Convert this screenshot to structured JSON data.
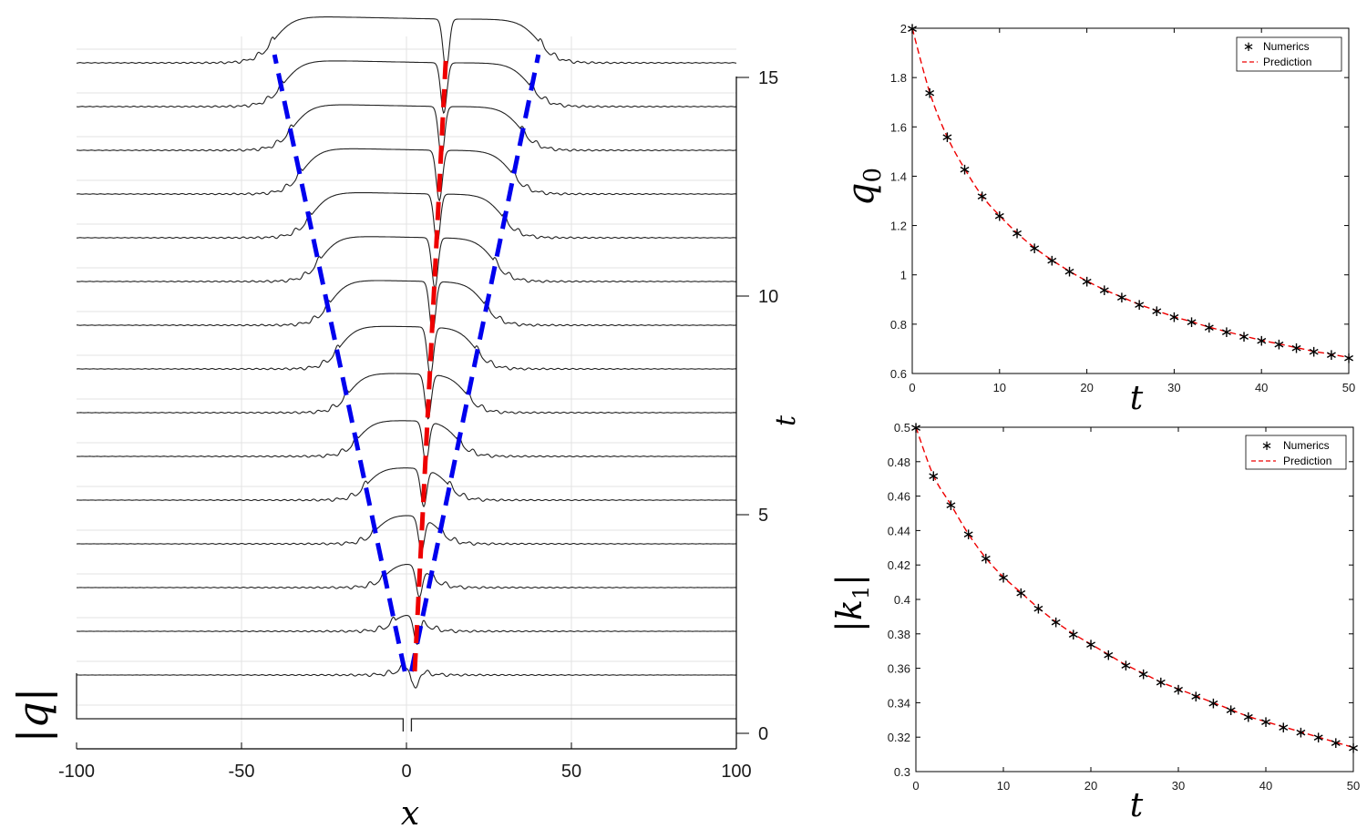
{
  "chart_data": [
    {
      "type": "line",
      "panel": "waterfall",
      "xlabel": "x",
      "ylabel": "|q|",
      "right_axis_label": "t",
      "xlim": [
        -100,
        100
      ],
      "tlim": [
        0,
        15
      ],
      "xticks": [
        "-100",
        "-50",
        "0",
        "50",
        "100"
      ],
      "tticks": [
        "0",
        "5",
        "10",
        "15"
      ],
      "grid": true,
      "series": [
        {
          "kind": "profiles",
          "t": [
            0,
            1,
            2,
            3,
            4,
            5,
            6,
            7,
            8,
            9,
            10,
            11,
            12,
            13,
            14,
            15
          ]
        },
        {
          "kind": "left-edge-prediction",
          "color": "#0000ee",
          "x": [
            -0.5,
            -40
          ],
          "t": [
            1,
            15
          ]
        },
        {
          "kind": "right-edge-prediction",
          "color": "#0000ee",
          "x": [
            1.5,
            40
          ],
          "t": [
            1,
            15
          ]
        },
        {
          "kind": "center-prediction",
          "color": "#ee0000",
          "x": [
            2.5,
            12
          ],
          "t": [
            1,
            15
          ]
        }
      ]
    },
    {
      "type": "line",
      "panel": "q0",
      "xlabel": "t",
      "ylabel": "q0",
      "xlim": [
        0,
        50
      ],
      "ylim": [
        0.6,
        2
      ],
      "xticks": [
        "0",
        "10",
        "20",
        "30",
        "40",
        "50"
      ],
      "yticks": [
        "0.6",
        "0.8",
        "1",
        "1.2",
        "1.4",
        "1.6",
        "1.8",
        "2"
      ],
      "legend": "top-right",
      "series": [
        {
          "name": "Numerics",
          "marker": "*",
          "color": "#000000",
          "x": [
            0,
            2,
            4,
            6,
            8,
            10,
            12,
            14,
            16,
            18,
            20,
            22,
            24,
            26,
            28,
            30,
            32,
            34,
            36,
            38,
            40,
            42,
            44,
            46,
            48,
            50
          ],
          "values": [
            2.0,
            1.74,
            1.56,
            1.43,
            1.32,
            1.24,
            1.17,
            1.11,
            1.06,
            1.015,
            0.975,
            0.94,
            0.91,
            0.88,
            0.855,
            0.83,
            0.81,
            0.788,
            0.77,
            0.752,
            0.735,
            0.72,
            0.705,
            0.69,
            0.678,
            0.665
          ]
        },
        {
          "name": "Prediction",
          "style": "dashed",
          "color": "#ee0000",
          "x": [
            0,
            2,
            4,
            6,
            8,
            10,
            12,
            14,
            16,
            18,
            20,
            22,
            24,
            26,
            28,
            30,
            32,
            34,
            36,
            38,
            40,
            42,
            44,
            46,
            48,
            50
          ],
          "values": [
            2.0,
            1.74,
            1.56,
            1.43,
            1.32,
            1.24,
            1.17,
            1.11,
            1.06,
            1.015,
            0.975,
            0.94,
            0.91,
            0.88,
            0.855,
            0.83,
            0.81,
            0.788,
            0.77,
            0.752,
            0.735,
            0.72,
            0.705,
            0.69,
            0.678,
            0.665
          ]
        }
      ]
    },
    {
      "type": "line",
      "panel": "k1",
      "xlabel": "t",
      "ylabel": "|k1|",
      "xlim": [
        0,
        50
      ],
      "ylim": [
        0.3,
        0.5
      ],
      "xticks": [
        "0",
        "10",
        "20",
        "30",
        "40",
        "50"
      ],
      "yticks": [
        "0.3",
        "0.32",
        "0.34",
        "0.36",
        "0.38",
        "0.4",
        "0.42",
        "0.44",
        "0.46",
        "0.48",
        "0.5"
      ],
      "legend": "top-right",
      "series": [
        {
          "name": "Numerics",
          "marker": "*",
          "color": "#000000",
          "x": [
            0,
            2,
            4,
            6,
            8,
            10,
            12,
            14,
            16,
            18,
            20,
            22,
            24,
            26,
            28,
            30,
            32,
            34,
            36,
            38,
            40,
            42,
            44,
            46,
            48,
            50
          ],
          "values": [
            0.5,
            0.472,
            0.455,
            0.438,
            0.424,
            0.413,
            0.404,
            0.395,
            0.387,
            0.38,
            0.374,
            0.368,
            0.362,
            0.357,
            0.352,
            0.348,
            0.344,
            0.34,
            0.336,
            0.332,
            0.329,
            0.326,
            0.323,
            0.32,
            0.317,
            0.314
          ]
        },
        {
          "name": "Prediction",
          "style": "dashed",
          "color": "#ee0000",
          "x": [
            0,
            2,
            4,
            6,
            8,
            10,
            12,
            14,
            16,
            18,
            20,
            22,
            24,
            26,
            28,
            30,
            32,
            34,
            36,
            38,
            40,
            42,
            44,
            46,
            48,
            50
          ],
          "values": [
            0.5,
            0.472,
            0.455,
            0.438,
            0.424,
            0.413,
            0.404,
            0.395,
            0.387,
            0.38,
            0.374,
            0.368,
            0.362,
            0.357,
            0.352,
            0.348,
            0.344,
            0.34,
            0.336,
            0.332,
            0.329,
            0.326,
            0.323,
            0.32,
            0.317,
            0.314
          ]
        }
      ]
    }
  ]
}
